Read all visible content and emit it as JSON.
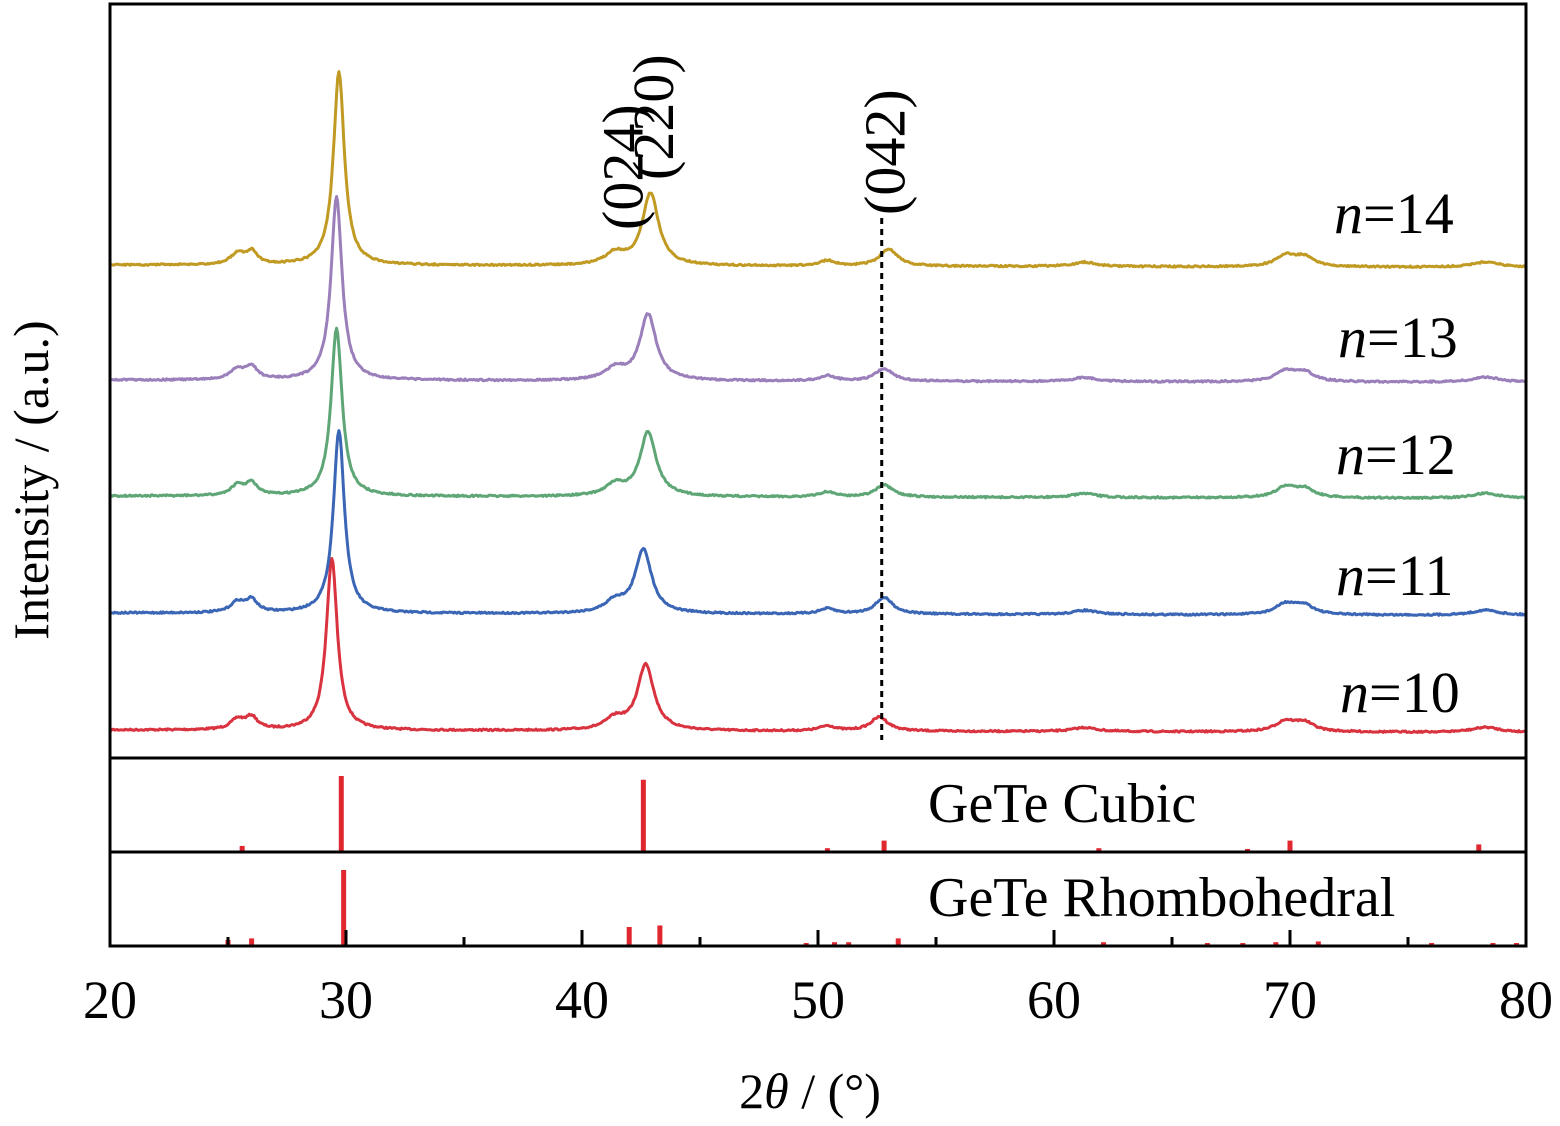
{
  "chart_data": {
    "type": "line",
    "xlabel_prefix": "2",
    "xlabel_symbol": "θ",
    "xlabel_suffix": " / (°)",
    "ylabel": "Intensity / (a.u.)",
    "xlim": [
      20,
      80
    ],
    "x_ticks": [
      "20",
      "30",
      "40",
      "50",
      "60",
      "70",
      "80"
    ],
    "grid": false,
    "series": [
      {
        "name": "n=10",
        "label_italic": "n",
        "label_rest": "=10",
        "color": "#d9333f"
      },
      {
        "name": "n=11",
        "label_italic": "n",
        "label_rest": "=11",
        "color": "#3a66b5"
      },
      {
        "name": "n=12",
        "label_italic": "n",
        "label_rest": "=12",
        "color": "#5fa676"
      },
      {
        "name": "n=13",
        "label_italic": "n",
        "label_rest": "=13",
        "color": "#9b7fbb"
      },
      {
        "name": "n=14",
        "label_italic": "n",
        "label_rest": "=14",
        "color": "#c09a22"
      }
    ],
    "peak_labels": [
      {
        "text": "(024)",
        "x": 41.8
      },
      {
        "text": "(220)",
        "x": 43.1
      },
      {
        "text": "(042)",
        "x": 52.9
      }
    ],
    "reference_line_x": 52.7,
    "reference_patterns": [
      {
        "name": "GeTe Cubic",
        "color": "#e0262e",
        "sticks": [
          {
            "x": 25.6,
            "i": 8
          },
          {
            "x": 29.8,
            "i": 100
          },
          {
            "x": 42.6,
            "i": 95
          },
          {
            "x": 50.4,
            "i": 5
          },
          {
            "x": 52.8,
            "i": 15
          },
          {
            "x": 61.9,
            "i": 5
          },
          {
            "x": 68.2,
            "i": 3
          },
          {
            "x": 70.0,
            "i": 15
          },
          {
            "x": 78.0,
            "i": 10
          }
        ]
      },
      {
        "name": "GeTe Rhombohedral",
        "color": "#e0262e",
        "sticks": [
          {
            "x": 25.0,
            "i": 8
          },
          {
            "x": 26.0,
            "i": 10
          },
          {
            "x": 29.9,
            "i": 100
          },
          {
            "x": 42.0,
            "i": 25
          },
          {
            "x": 43.3,
            "i": 27
          },
          {
            "x": 49.5,
            "i": 4
          },
          {
            "x": 50.7,
            "i": 5
          },
          {
            "x": 51.3,
            "i": 5
          },
          {
            "x": 53.4,
            "i": 10
          },
          {
            "x": 62.1,
            "i": 5
          },
          {
            "x": 66.5,
            "i": 3
          },
          {
            "x": 68.0,
            "i": 3
          },
          {
            "x": 69.4,
            "i": 5
          },
          {
            "x": 71.2,
            "i": 6
          },
          {
            "x": 76.0,
            "i": 4
          },
          {
            "x": 78.6,
            "i": 4
          },
          {
            "x": 79.6,
            "i": 3
          }
        ]
      }
    ]
  }
}
